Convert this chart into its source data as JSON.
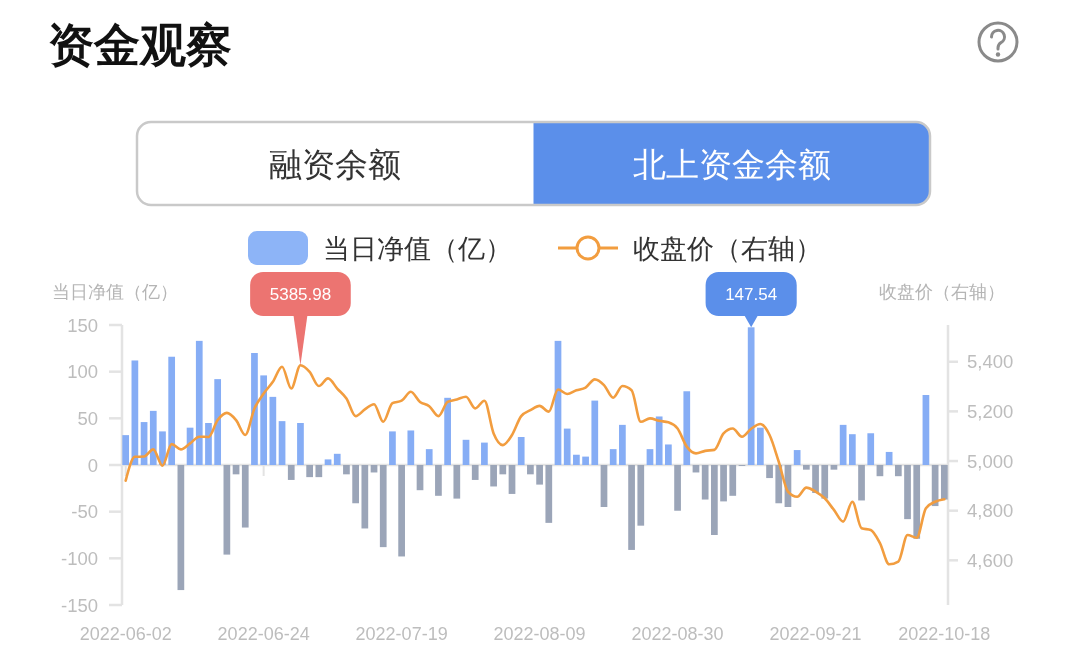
{
  "chart_data": {
    "type": "bar",
    "title": "资金观察",
    "subtitle": "北上资金余额",
    "annotations": [
      "融资余额"
    ],
    "categories": [
      "2022-06-02",
      null,
      null,
      null,
      null,
      null,
      null,
      null,
      null,
      null,
      null,
      null,
      null,
      null,
      null,
      "2022-06-24",
      null,
      null,
      null,
      null,
      null,
      null,
      null,
      null,
      null,
      null,
      null,
      null,
      null,
      null,
      "2022-07-19",
      null,
      null,
      null,
      null,
      null,
      null,
      null,
      null,
      null,
      null,
      null,
      null,
      null,
      null,
      "2022-08-09",
      null,
      null,
      null,
      null,
      null,
      null,
      null,
      null,
      null,
      null,
      null,
      null,
      null,
      null,
      "2022-08-30",
      null,
      null,
      null,
      null,
      null,
      null,
      null,
      null,
      null,
      null,
      null,
      null,
      null,
      null,
      "2022-09-21",
      null,
      null,
      null,
      null,
      null,
      null,
      null,
      null,
      null,
      null,
      null,
      null,
      null,
      "2022-10-18"
    ],
    "ylabel": "当日净值（亿）",
    "y2label": "收盘价（右轴）",
    "ylim": [
      -150,
      150
    ],
    "yticks": [
      -150,
      -100,
      -50,
      0,
      50,
      100,
      150
    ],
    "y2lim": [
      4420,
      5548
    ],
    "y2ticks": [
      {
        "value": 4600,
        "label": "4,600"
      },
      {
        "value": 4800,
        "label": "4,800"
      },
      {
        "value": 5000,
        "label": "5,000"
      },
      {
        "value": 5200,
        "label": "5,200"
      },
      {
        "value": 5400,
        "label": "5,400"
      }
    ],
    "legend": "top",
    "series": [
      {
        "name": "当日净值（亿）",
        "color": "#8db4f7",
        "colors": [
          "#86adf5",
          "#86adf5",
          "#86adf5",
          "#86adf5",
          "#86adf5",
          "#86adf5",
          "#9ba5b8",
          "#86adf5",
          "#86adf5",
          "#86adf5",
          "#86adf5",
          "#9ba5b8",
          "#9ba5b8",
          "#9ba5b8",
          "#86adf5",
          "#86adf5",
          "#86adf5",
          "#86adf5",
          "#9ba5b8",
          "#86adf5",
          "#9ba5b8",
          "#9ba5b8",
          "#86adf5",
          "#86adf5",
          "#9ba5b8",
          "#9ba5b8",
          "#9ba5b8",
          "#9ba5b8",
          "#9ba5b8",
          "#86adf5",
          "#9ba5b8",
          "#86adf5",
          "#9ba5b8",
          "#86adf5",
          "#9ba5b8",
          "#86adf5",
          "#9ba5b8",
          "#86adf5",
          "#9ba5b8",
          "#86adf5",
          "#9ba5b8",
          "#9ba5b8",
          "#9ba5b8",
          "#86adf5",
          "#9ba5b8",
          "#9ba5b8",
          "#9ba5b8",
          "#86adf5",
          "#86adf5",
          "#86adf5",
          "#86adf5",
          "#86adf5",
          "#9ba5b8",
          "#86adf5",
          "#86adf5",
          "#9ba5b8",
          "#9ba5b8",
          "#86adf5",
          "#86adf5",
          "#86adf5",
          "#9ba5b8",
          "#86adf5",
          "#9ba5b8",
          "#9ba5b8",
          "#9ba5b8",
          "#9ba5b8",
          "#9ba5b8",
          "#9ba5b8",
          "#86adf5",
          "#86adf5",
          "#9ba5b8",
          "#9ba5b8",
          "#9ba5b8",
          "#86adf5",
          "#9ba5b8",
          "#9ba5b8",
          "#9ba5b8",
          "#9ba5b8",
          "#86adf5",
          "#86adf5",
          "#9ba5b8",
          "#86adf5",
          "#9ba5b8",
          "#86adf5",
          "#9ba5b8",
          "#9ba5b8",
          "#9ba5b8",
          "#86adf5",
          "#9ba5b8",
          "#9ba5b8"
        ],
        "values": [
          32,
          112,
          46,
          58,
          36,
          116,
          -134,
          40,
          133,
          45,
          92,
          -96,
          -10,
          -67,
          120,
          96,
          73,
          47,
          -16,
          45,
          -13,
          -13,
          6,
          12,
          -10,
          -41,
          -68,
          -8,
          -88,
          36,
          -98,
          37,
          -27,
          17,
          -33,
          72,
          -36,
          27,
          -16,
          24,
          -23,
          -10,
          -31,
          30,
          -10,
          -21,
          -62,
          133,
          39,
          11,
          9,
          69,
          -45,
          17,
          43,
          -91,
          -65,
          17,
          52,
          22,
          -49,
          79,
          -8,
          -37,
          -75,
          -39,
          -33,
          -1,
          147.54,
          40,
          -14,
          -41,
          -45,
          16,
          -5,
          -30,
          -36,
          -5,
          43,
          33,
          -38,
          34,
          -12,
          14,
          -12,
          -58,
          -79,
          75,
          -44,
          -37
        ],
        "value_labels": [
          null,
          null,
          null,
          null,
          null,
          null,
          null,
          null,
          null,
          null,
          null,
          null,
          null,
          null,
          null,
          null,
          null,
          null,
          null,
          null,
          null,
          null,
          null,
          null,
          null,
          null,
          null,
          null,
          null,
          null,
          null,
          null,
          null,
          null,
          null,
          null,
          null,
          null,
          null,
          null,
          null,
          null,
          null,
          null,
          null,
          null,
          null,
          null,
          null,
          null,
          null,
          null,
          null,
          null,
          null,
          null,
          null,
          null,
          null,
          null,
          null,
          null,
          null,
          null,
          null,
          null,
          null,
          null,
          "147.54",
          null,
          null,
          null,
          null,
          null,
          null,
          null,
          null,
          null,
          null,
          null,
          null,
          null,
          null,
          null,
          null,
          null,
          null,
          null,
          null,
          null
        ]
      },
      {
        "name": "收盘价（右轴）",
        "type": "line",
        "axis": "y2",
        "color": "#f29d3f",
        "values": [
          4921,
          5017,
          5018,
          5047,
          4981,
          5068,
          5047,
          5071,
          5098,
          5097,
          5165,
          5194,
          5165,
          5105,
          5212,
          5272,
          5319,
          5380,
          5292,
          5385.98,
          5359,
          5302,
          5333,
          5292,
          5252,
          5181,
          5208,
          5229,
          5158,
          5233,
          5243,
          5279,
          5238,
          5221,
          5181,
          5238,
          5248,
          5259,
          5212,
          5243,
          5111,
          5064,
          5105,
          5181,
          5205,
          5222,
          5199,
          5288,
          5270,
          5285,
          5296,
          5329,
          5306,
          5255,
          5302,
          5285,
          5158,
          5172,
          5162,
          5156,
          5131,
          5058,
          5031,
          5041,
          5045,
          5111,
          5131,
          5098,
          5130,
          5149,
          5105,
          4997,
          4877,
          4856,
          4893,
          4877,
          4850,
          4803,
          4756,
          4836,
          4729,
          4722,
          4669,
          4584,
          4595,
          4702,
          4691,
          4810,
          4836,
          4846
        ],
        "value_labels": [
          null,
          null,
          null,
          null,
          null,
          null,
          null,
          null,
          null,
          null,
          null,
          null,
          null,
          null,
          null,
          null,
          null,
          null,
          null,
          "5385.98",
          null,
          null,
          null,
          null,
          null,
          null,
          null,
          null,
          null,
          null,
          null,
          null,
          null,
          null,
          null,
          null,
          null,
          null,
          null,
          null,
          null,
          null,
          null,
          null,
          null,
          null,
          null,
          null,
          null,
          null,
          null,
          null,
          null,
          null,
          null,
          null,
          null,
          null,
          null,
          null,
          null,
          null,
          null,
          null,
          null,
          null,
          null,
          null,
          null,
          null,
          null,
          null,
          null,
          null,
          null,
          null,
          null,
          null,
          null,
          null,
          null,
          null,
          null,
          null,
          null,
          null,
          null,
          null,
          null,
          null
        ]
      }
    ]
  }
}
